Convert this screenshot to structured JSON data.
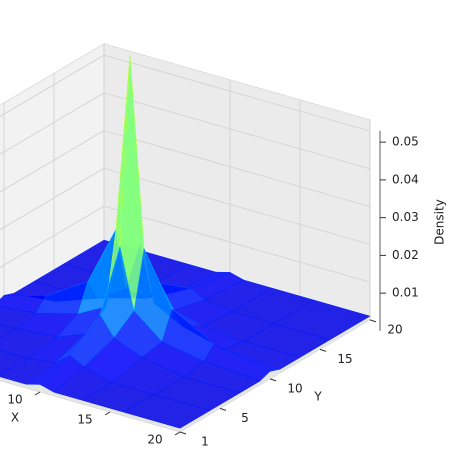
{
  "chart_data": {
    "type": "surface",
    "x_label": "X",
    "y_label": "Y",
    "z_label": "Density",
    "colormap": "jet",
    "grid": true,
    "x": [
      1,
      4,
      7,
      9,
      10,
      11,
      13,
      16,
      20
    ],
    "y": [
      1,
      4,
      7,
      9,
      10,
      11,
      13,
      16,
      20
    ],
    "z": [
      [
        0.001,
        0.001,
        0.001,
        0.001,
        0.002,
        0.001,
        0.001,
        0.001,
        0.001
      ],
      [
        0.001,
        0.001,
        0.001,
        0.002,
        0.005,
        0.003,
        0.001,
        0.001,
        0.001
      ],
      [
        0.001,
        0.001,
        0.002,
        0.005,
        0.011,
        0.006,
        0.003,
        0.001,
        0.001
      ],
      [
        0.001,
        0.002,
        0.005,
        0.009,
        0.026,
        0.01,
        0.004,
        0.002,
        0.001
      ],
      [
        0.002,
        0.005,
        0.012,
        0.028,
        0.075,
        0.025,
        0.011,
        0.005,
        0.002
      ],
      [
        0.001,
        0.002,
        0.006,
        0.011,
        0.024,
        0.009,
        0.005,
        0.002,
        0.001
      ],
      [
        0.001,
        0.001,
        0.003,
        0.005,
        0.01,
        0.004,
        0.002,
        0.001,
        0.001
      ],
      [
        0.001,
        0.001,
        0.001,
        0.002,
        0.004,
        0.002,
        0.001,
        0.001,
        0.001
      ],
      [
        0.001,
        0.001,
        0.001,
        0.001,
        0.002,
        0.001,
        0.001,
        0.001,
        0.001
      ]
    ],
    "xlim": [
      1,
      20
    ],
    "ylim": [
      1,
      20
    ],
    "zlim": [
      0,
      0.053
    ],
    "xticks": [
      10,
      15,
      20
    ],
    "yticks": [
      1,
      5,
      10,
      15,
      20
    ],
    "zticks": [
      0.01,
      0.02,
      0.03,
      0.04,
      0.05
    ]
  }
}
